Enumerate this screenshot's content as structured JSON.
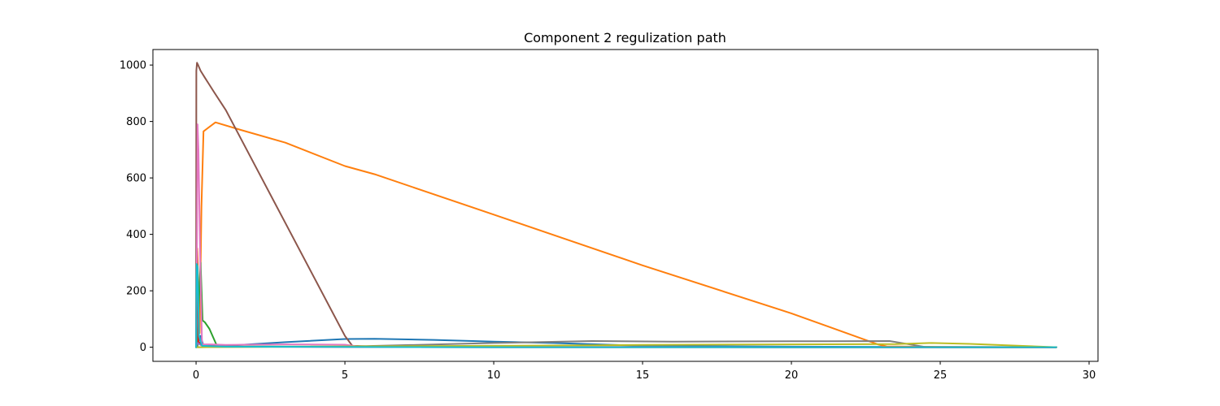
{
  "chart_data": {
    "type": "line",
    "title": "Component 2 regulization path",
    "xlabel": "",
    "ylabel": "",
    "xlim": [
      -1.45,
      30.3
    ],
    "ylim": [
      -50,
      1055
    ],
    "xticks": [
      0,
      5,
      10,
      15,
      20,
      25,
      30
    ],
    "yticks": [
      0,
      200,
      400,
      600,
      800,
      1000
    ],
    "grid": false,
    "legend": "none",
    "series": [
      {
        "color": "#1f77b4",
        "x": [
          0,
          0.02,
          0.05,
          0.08,
          0.15,
          0.25,
          1.0,
          3.0,
          5.0,
          6.0,
          8.0,
          10.0,
          12.0,
          15.0,
          20.0,
          25.0,
          28.9
        ],
        "y": [
          0,
          20,
          45,
          20,
          40,
          5,
          5,
          18,
          29,
          30,
          26,
          20,
          15,
          5,
          2,
          1,
          0
        ]
      },
      {
        "color": "#ff7f0e",
        "x": [
          0,
          0.04,
          0.12,
          0.18,
          0.25,
          0.65,
          1.5,
          3.0,
          5.0,
          6.0,
          10.0,
          15.0,
          20.0,
          22.9,
          23.2,
          25.0,
          28.9
        ],
        "y": [
          0,
          350,
          50,
          500,
          765,
          797,
          770,
          725,
          642,
          613,
          470,
          290,
          120,
          10,
          3,
          1,
          0
        ]
      },
      {
        "color": "#2ca02c",
        "x": [
          0,
          0.05,
          0.1,
          0.15,
          0.22,
          0.3,
          0.45,
          0.7,
          1.0,
          5.0,
          10.0,
          20.0,
          28.9
        ],
        "y": [
          0,
          5,
          180,
          300,
          95,
          88,
          65,
          5,
          3,
          2,
          1,
          0,
          0
        ]
      },
      {
        "color": "#d62728",
        "x": [
          0,
          0.03,
          0.08,
          0.2,
          1.0,
          5.0,
          10.0,
          20.0,
          28.9
        ],
        "y": [
          0,
          340,
          20,
          8,
          2,
          1,
          0,
          0,
          0
        ]
      },
      {
        "color": "#9467bd",
        "x": [
          0,
          0.05,
          0.15,
          0.4,
          1.0,
          5.0,
          10.0,
          20.0,
          28.9
        ],
        "y": [
          0,
          15,
          8,
          4,
          2,
          1,
          0,
          0,
          0
        ]
      },
      {
        "color": "#8c564b",
        "x": [
          0,
          0.01,
          0.03,
          0.07,
          0.15,
          0.3,
          0.6,
          1.0,
          2.0,
          3.0,
          4.0,
          5.0,
          5.25,
          6.0,
          10.0,
          20.0,
          28.9
        ],
        "y": [
          0,
          980,
          1008,
          1000,
          980,
          955,
          905,
          840,
          640,
          440,
          240,
          40,
          5,
          2,
          1,
          0,
          0
        ]
      },
      {
        "color": "#e377c2",
        "x": [
          0,
          0.02,
          0.05,
          0.08,
          0.14,
          0.2,
          0.5,
          1.0,
          3.0,
          5.0,
          5.5,
          10.0,
          20.0,
          28.9
        ],
        "y": [
          0,
          200,
          790,
          700,
          300,
          10,
          10,
          8,
          10,
          9,
          2,
          1,
          0,
          0
        ]
      },
      {
        "color": "#7f7f7f",
        "x": [
          0,
          1.0,
          5.0,
          10.0,
          13.3,
          16.0,
          20.0,
          23.3,
          24.5,
          25.0,
          28.9
        ],
        "y": [
          0,
          1,
          2,
          15,
          22,
          20,
          21,
          22,
          1,
          0,
          0
        ]
      },
      {
        "color": "#bcbd22",
        "x": [
          0,
          5.0,
          10.0,
          15.0,
          20.0,
          23.5,
          24.7,
          26.0,
          28.9
        ],
        "y": [
          0,
          3,
          5,
          8,
          10,
          11,
          15,
          12,
          0
        ]
      },
      {
        "color": "#17becf",
        "x": [
          0,
          0.02,
          0.05,
          0.1,
          0.2,
          1.0,
          5.0,
          10.0,
          20.0,
          28.9
        ],
        "y": [
          0,
          295,
          285,
          40,
          5,
          2,
          1,
          0,
          0,
          0
        ]
      }
    ]
  }
}
